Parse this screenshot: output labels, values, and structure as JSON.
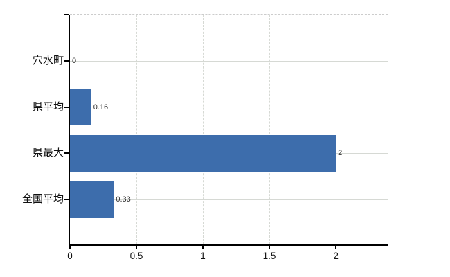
{
  "colors": {
    "bar": "#3d6dac",
    "axis": "#000000",
    "gridline": "#d6d9d4",
    "dashed_border": "#cccccc",
    "value_label": "#333333",
    "tick_label": "#111111",
    "background": "#ffffff"
  },
  "chart_data": {
    "type": "bar",
    "orientation": "horizontal",
    "categories": [
      "穴水町",
      "県平均",
      "県最大",
      "全国平均"
    ],
    "values": [
      0,
      0.16,
      2,
      0.33
    ],
    "value_labels": [
      "0",
      "0.16",
      "2",
      "0.33"
    ],
    "x_ticks": [
      0,
      0.5,
      1,
      1.5,
      2
    ],
    "x_tick_labels": [
      "0",
      "0.5",
      "1",
      "1.5",
      "2"
    ],
    "xlim": [
      0,
      2.39
    ],
    "grid": {
      "horizontal_lines": "solid, one per category",
      "vertical_lines": "dashed, at x ticks",
      "top_border": "dashed"
    },
    "legend": "none",
    "title": ""
  }
}
